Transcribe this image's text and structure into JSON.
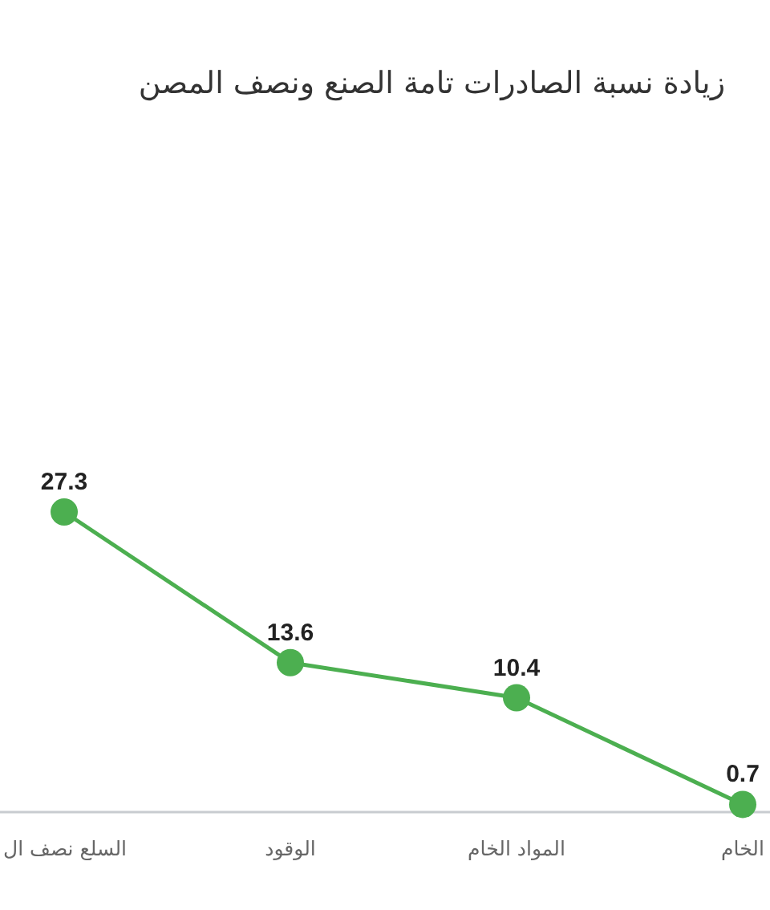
{
  "chart_data": {
    "type": "line",
    "title": "زيادة نسبة الصادرات تامة الصنع ونصف المصن",
    "categories": [
      "السلع نصف ال",
      "الوقود",
      "المواد الخام",
      "الخام"
    ],
    "values": [
      27.3,
      13.6,
      10.4,
      0.7
    ],
    "value_labels": [
      "27.3",
      "13.6",
      "10.4",
      "0.7"
    ],
    "color": "#4caf50",
    "marker": "circle"
  }
}
